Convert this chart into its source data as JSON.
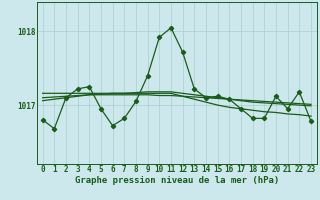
{
  "title": "Graphe pression niveau de la mer (hPa)",
  "bg_color": "#cce8ec",
  "grid_color": "#aacccc",
  "line_color": "#1a5c1a",
  "xlim": [
    -0.5,
    23.5
  ],
  "ylim": [
    1016.2,
    1018.4
  ],
  "yticks": [
    1017,
    1018
  ],
  "xticks": [
    0,
    1,
    2,
    3,
    4,
    5,
    6,
    7,
    8,
    9,
    10,
    11,
    12,
    13,
    14,
    15,
    16,
    17,
    18,
    19,
    20,
    21,
    22,
    23
  ],
  "main_series": [
    1016.8,
    1016.68,
    1017.1,
    1017.22,
    1017.25,
    1016.95,
    1016.72,
    1016.82,
    1017.05,
    1017.4,
    1017.92,
    1018.05,
    1017.72,
    1017.22,
    1017.1,
    1017.12,
    1017.08,
    1016.95,
    1016.82,
    1016.82,
    1017.12,
    1016.95,
    1017.18,
    1016.78
  ],
  "trend1_series": [
    1017.16,
    1017.16,
    1017.16,
    1017.16,
    1017.16,
    1017.16,
    1017.16,
    1017.16,
    1017.16,
    1017.16,
    1017.16,
    1017.16,
    1017.12,
    1017.08,
    1017.04,
    1017.0,
    1016.97,
    1016.95,
    1016.93,
    1016.91,
    1016.9,
    1016.88,
    1016.87,
    1016.85
  ],
  "trend2_series": [
    1017.06,
    1017.08,
    1017.1,
    1017.12,
    1017.14,
    1017.15,
    1017.16,
    1017.16,
    1017.17,
    1017.18,
    1017.18,
    1017.18,
    1017.16,
    1017.14,
    1017.12,
    1017.1,
    1017.08,
    1017.06,
    1017.04,
    1017.03,
    1017.02,
    1017.01,
    1017.0,
    1016.99
  ],
  "trend3_series": [
    1017.1,
    1017.11,
    1017.12,
    1017.13,
    1017.14,
    1017.14,
    1017.14,
    1017.14,
    1017.14,
    1017.14,
    1017.13,
    1017.13,
    1017.12,
    1017.11,
    1017.1,
    1017.09,
    1017.08,
    1017.07,
    1017.06,
    1017.05,
    1017.04,
    1017.03,
    1017.02,
    1017.01
  ],
  "tick_fontsize": 5.5,
  "title_fontsize": 6.5
}
